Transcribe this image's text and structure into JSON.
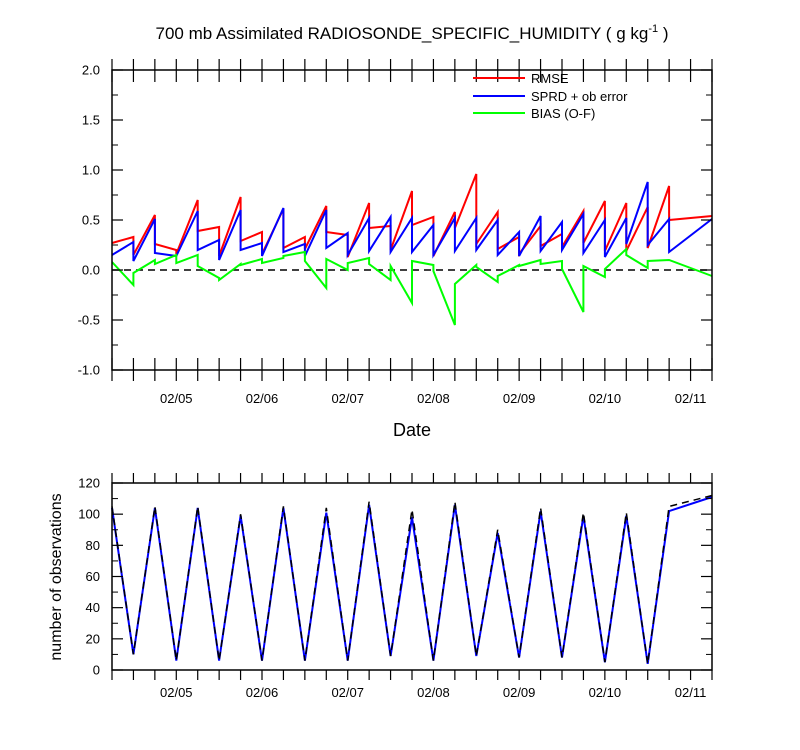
{
  "chart_data": [
    {
      "type": "line",
      "title": "700 mb Assimilated RADIOSONDE_SPECIFIC_HUMIDITY ( g kg",
      "title_superscript": "-1",
      "title_end": " )",
      "xlabel": "Date",
      "ylabel": "",
      "ylim": [
        -1.0,
        2.0
      ],
      "yticks": [
        "-1.0",
        "-0.5",
        "0.0",
        "0.5",
        "1.0",
        "1.5",
        "2.0"
      ],
      "yticks_values": [
        -1.0,
        -0.5,
        0.0,
        0.5,
        1.0,
        1.5,
        2.0
      ],
      "xlim": [
        0,
        14
      ],
      "xtick_labels": [
        "02/05",
        "02/06",
        "02/07",
        "02/08",
        "02/09",
        "02/10",
        "02/11"
      ],
      "xtick_positions": [
        1.5,
        3.5,
        5.5,
        7.5,
        9.5,
        11.5,
        13.5
      ],
      "reference_line": 0.0,
      "legend_position": "top-right",
      "series": [
        {
          "name": "RMSE",
          "color": "#ff0000",
          "x": [
            0,
            0.0,
            0.5,
            0.5,
            1.0,
            1.0,
            1.5,
            1.5,
            2.0,
            2.0,
            2.5,
            2.5,
            3.0,
            3.0,
            3.5,
            3.5,
            4.0,
            4.0,
            4.5,
            4.5,
            5.0,
            5.0,
            5.5,
            5.5,
            6.0,
            6.0,
            6.5,
            6.5,
            7.0,
            7.0,
            7.5,
            7.5,
            8.0,
            8.0,
            8.5,
            8.5,
            9.0,
            9.0,
            9.5,
            9.5,
            10.0,
            10.0,
            10.5,
            10.5,
            11.0,
            11.0,
            11.5,
            11.5,
            12.0,
            12.0,
            12.5,
            12.5,
            13.0,
            13.0,
            14.0
          ],
          "y": [
            0.27,
            0.27,
            0.33,
            0.15,
            0.55,
            0.26,
            0.2,
            0.16,
            0.7,
            0.39,
            0.43,
            0.14,
            0.73,
            0.29,
            0.38,
            0.16,
            0.61,
            0.22,
            0.33,
            0.21,
            0.64,
            0.38,
            0.35,
            0.13,
            0.67,
            0.42,
            0.44,
            0.2,
            0.79,
            0.45,
            0.53,
            0.14,
            0.58,
            0.42,
            0.96,
            0.26,
            0.58,
            0.21,
            0.33,
            0.16,
            0.44,
            0.24,
            0.36,
            0.23,
            0.59,
            0.27,
            0.69,
            0.19,
            0.67,
            0.19,
            0.63,
            0.22,
            0.84,
            0.5,
            0.54
          ]
        },
        {
          "name": "SPRD + ob error",
          "color": "#0000ff",
          "x": [
            0,
            0.0,
            0.5,
            0.5,
            1.0,
            1.0,
            1.5,
            1.5,
            2.0,
            2.0,
            2.5,
            2.5,
            3.0,
            3.0,
            3.5,
            3.5,
            4.0,
            4.0,
            4.5,
            4.5,
            5.0,
            5.0,
            5.5,
            5.5,
            6.0,
            6.0,
            6.5,
            6.5,
            7.0,
            7.0,
            7.5,
            7.5,
            8.0,
            8.0,
            8.5,
            8.5,
            9.0,
            9.0,
            9.5,
            9.5,
            10.0,
            10.0,
            10.5,
            10.5,
            11.0,
            11.0,
            11.5,
            11.5,
            12.0,
            12.0,
            12.5,
            12.5,
            13.0,
            13.0,
            14.0
          ],
          "y": [
            0.15,
            0.15,
            0.28,
            0.09,
            0.51,
            0.17,
            0.14,
            0.14,
            0.59,
            0.2,
            0.3,
            0.1,
            0.6,
            0.2,
            0.27,
            0.14,
            0.62,
            0.18,
            0.26,
            0.14,
            0.6,
            0.22,
            0.37,
            0.15,
            0.52,
            0.19,
            0.53,
            0.18,
            0.52,
            0.18,
            0.45,
            0.15,
            0.52,
            0.19,
            0.52,
            0.2,
            0.5,
            0.15,
            0.38,
            0.14,
            0.54,
            0.19,
            0.48,
            0.2,
            0.56,
            0.17,
            0.5,
            0.13,
            0.52,
            0.26,
            0.88,
            0.25,
            0.51,
            0.18,
            0.51
          ]
        },
        {
          "name": "BIAS (O-F)",
          "color": "#00ff00",
          "x": [
            0,
            0.0,
            0.5,
            0.5,
            1.0,
            1.0,
            1.5,
            1.5,
            2.0,
            2.0,
            2.5,
            2.5,
            3.0,
            3.0,
            3.5,
            3.5,
            4.0,
            4.0,
            4.5,
            4.5,
            5.0,
            5.0,
            5.5,
            5.5,
            6.0,
            6.0,
            6.5,
            6.5,
            7.0,
            7.0,
            7.5,
            7.5,
            8.0,
            8.0,
            8.5,
            8.5,
            9.0,
            9.0,
            9.5,
            9.5,
            10.0,
            10.0,
            10.5,
            10.5,
            11.0,
            11.0,
            11.5,
            11.5,
            12.0,
            12.0,
            12.5,
            12.5,
            13.0,
            13.0,
            14.0
          ],
          "y": [
            0.08,
            0.08,
            -0.15,
            -0.03,
            0.1,
            0.06,
            0.15,
            0.07,
            0.15,
            0.04,
            -0.08,
            -0.1,
            0.06,
            0.05,
            0.11,
            0.07,
            0.12,
            0.14,
            0.18,
            0.09,
            -0.18,
            0.11,
            0.0,
            0.07,
            0.12,
            0.06,
            -0.1,
            0.04,
            -0.33,
            0.09,
            0.05,
            -0.01,
            -0.55,
            -0.14,
            0.05,
            0.03,
            -0.12,
            -0.06,
            0.05,
            0.04,
            0.1,
            0.06,
            0.09,
            0.01,
            -0.42,
            0.04,
            -0.07,
            0.01,
            0.21,
            0.15,
            0.02,
            0.09,
            0.1,
            0.1,
            -0.06
          ]
        }
      ]
    },
    {
      "type": "line",
      "title": "",
      "xlabel": "",
      "ylabel": "number of observations",
      "ylim": [
        0,
        120
      ],
      "yticks": [
        "0",
        "20",
        "40",
        "60",
        "80",
        "100",
        "120"
      ],
      "yticks_values": [
        0,
        20,
        40,
        60,
        80,
        100,
        120
      ],
      "xlim": [
        0,
        14
      ],
      "xtick_labels": [
        "02/05",
        "02/06",
        "02/07",
        "02/08",
        "02/09",
        "02/10",
        "02/11"
      ],
      "xtick_positions": [
        1.5,
        3.5,
        5.5,
        7.5,
        9.5,
        11.5,
        13.5
      ],
      "series": [
        {
          "color": "#0000ff",
          "style": "solid",
          "x": [
            0,
            0.5,
            1.0,
            1.5,
            2.0,
            2.5,
            3.0,
            3.5,
            4.0,
            4.5,
            5.0,
            5.5,
            6.0,
            6.5,
            7.0,
            7.5,
            8.0,
            8.5,
            9.0,
            9.5,
            10.0,
            10.5,
            11.0,
            11.5,
            12.0,
            12.5,
            13.0,
            14.0
          ],
          "y": [
            104,
            10,
            104,
            6,
            104,
            6,
            99,
            6,
            104,
            6,
            101,
            6,
            106,
            9,
            98,
            6,
            106,
            9,
            88,
            8,
            102,
            8,
            99,
            5,
            99,
            4,
            102,
            111
          ]
        },
        {
          "color": "#000000",
          "style": "dashed",
          "x": [
            0,
            0.5,
            1.0,
            1.5,
            2.0,
            2.5,
            3.0,
            3.5,
            4.0,
            4.5,
            5.0,
            5.5,
            6.0,
            6.5,
            7.0,
            7.5,
            8.0,
            8.5,
            9.0,
            9.5,
            10.0,
            10.5,
            11.0,
            11.5,
            12.0,
            12.5,
            13.0,
            14.0
          ],
          "y": [
            105,
            10,
            105,
            6,
            105,
            6,
            100,
            6,
            105,
            6,
            104,
            6,
            108,
            9,
            103,
            6,
            108,
            9,
            90,
            8,
            104,
            8,
            101,
            5,
            101,
            4,
            105,
            112
          ]
        }
      ]
    }
  ]
}
